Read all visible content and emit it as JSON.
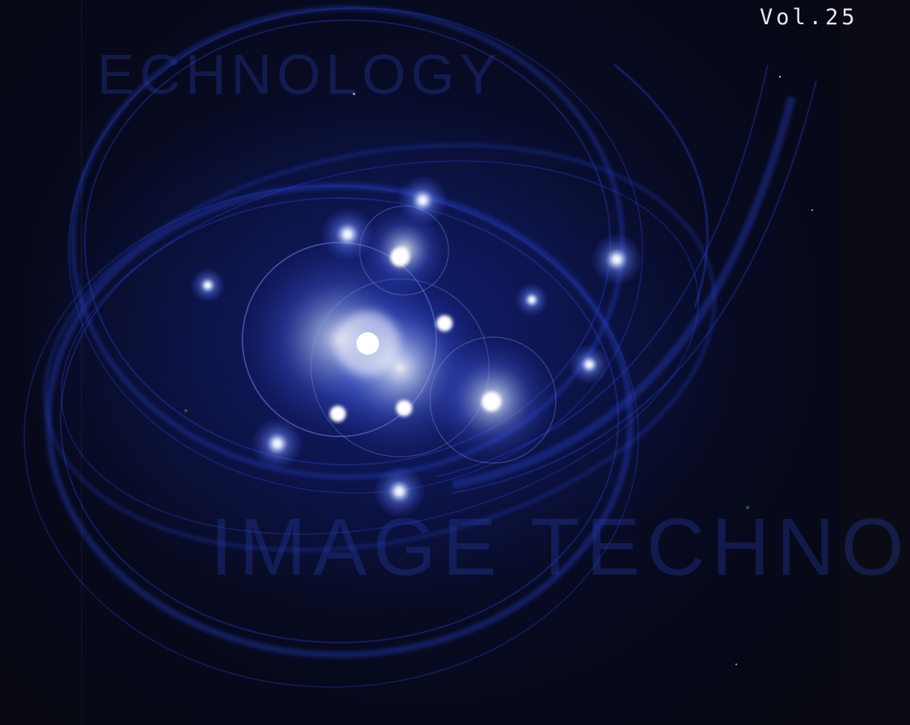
{
  "cover": {
    "volume_label": "Vol.25",
    "ghost_text_top": "ECHNOLOGY",
    "ghost_text_bottom": "IMAGE TECHNO",
    "colors": {
      "background": "#07091a",
      "swirl": "#1f3bd8",
      "glow": "#cfe0ff",
      "orb": "#6e8dff"
    }
  }
}
